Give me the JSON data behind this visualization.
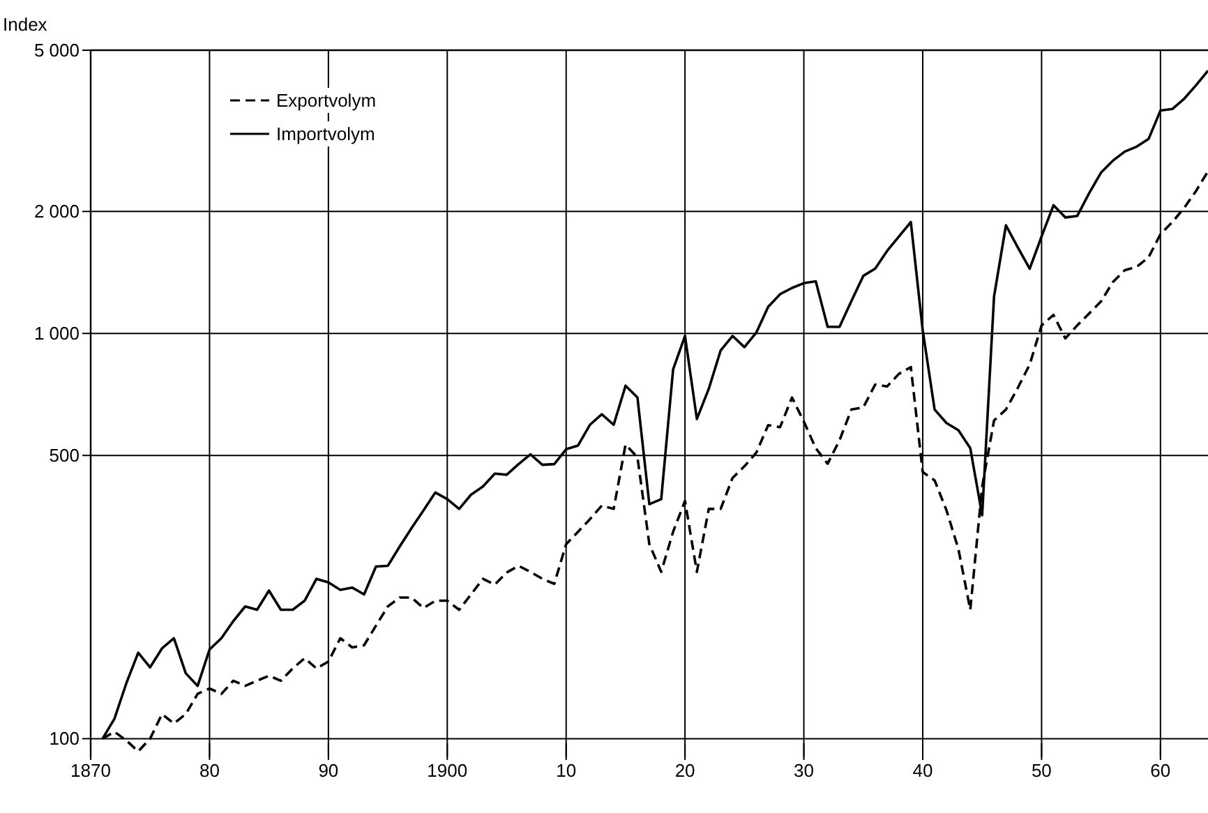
{
  "chart_data": {
    "type": "line",
    "ylabel": "Index",
    "log": true,
    "grid": true,
    "legend": "top left",
    "xlim": [
      1870,
      1964
    ],
    "xticks": [
      1870,
      {
        "value": 1880,
        "label": "80"
      },
      {
        "value": 1890,
        "label": "90"
      },
      1900,
      {
        "value": 1910,
        "label": "10"
      },
      {
        "value": 1920,
        "label": "20"
      },
      {
        "value": 1930,
        "label": "30"
      },
      {
        "value": 1940,
        "label": "40"
      },
      {
        "value": 1950,
        "label": "50"
      },
      {
        "value": 1960,
        "label": "60"
      }
    ],
    "ylim": [
      90,
      5000
    ],
    "yticks": [
      100,
      500,
      {
        "value": 1000,
        "label": "1 000"
      },
      {
        "value": 2000,
        "label": "2 000"
      },
      {
        "value": 5000,
        "label": "5 000"
      }
    ],
    "series": [
      {
        "name": "Exportvolym",
        "color": "#000000",
        "line_style": "dashed",
        "x": [
          1871,
          1872,
          1873,
          1874,
          1875,
          1876,
          1877,
          1878,
          1879,
          1880,
          1881,
          1882,
          1883,
          1884,
          1885,
          1886,
          1887,
          1888,
          1889,
          1890,
          1891,
          1892,
          1893,
          1894,
          1895,
          1896,
          1897,
          1898,
          1899,
          1900,
          1901,
          1902,
          1903,
          1904,
          1905,
          1906,
          1907,
          1908,
          1909,
          1910,
          1911,
          1912,
          1913,
          1914,
          1915,
          1916,
          1917,
          1918,
          1919,
          1920,
          1921,
          1922,
          1923,
          1924,
          1925,
          1926,
          1927,
          1928,
          1929,
          1930,
          1931,
          1932,
          1933,
          1934,
          1935,
          1936,
          1937,
          1938,
          1939,
          1940,
          1941,
          1942,
          1943,
          1944,
          1945,
          1946,
          1947,
          1948,
          1949,
          1950,
          1951,
          1952,
          1953,
          1954,
          1955,
          1956,
          1957,
          1958,
          1959,
          1960,
          1961,
          1962,
          1963,
          1964
        ],
        "values": [
          100,
          104,
          99,
          93,
          100,
          115,
          109,
          115,
          129,
          133,
          129,
          139,
          135,
          139,
          143,
          139,
          149,
          158,
          149,
          155,
          177,
          168,
          170,
          190,
          212,
          223,
          223,
          210,
          219,
          219,
          208,
          227,
          248,
          240,
          257,
          267,
          258,
          248,
          241,
          302,
          324,
          348,
          376,
          369,
          532,
          495,
          302,
          258,
          324,
          386,
          258,
          369,
          369,
          440,
          470,
          508,
          594,
          587,
          695,
          606,
          521,
          477,
          545,
          649,
          657,
          748,
          740,
          795,
          826,
          455,
          434,
          366,
          294,
          208,
          419,
          610,
          649,
          734,
          838,
          1047,
          1111,
          972,
          1047,
          1120,
          1200,
          1339,
          1433,
          1460,
          1541,
          1757,
          1883,
          2042,
          2248,
          2513
        ]
      },
      {
        "name": "Importvolym",
        "color": "#000000",
        "line_style": "solid",
        "x": [
          1871,
          1872,
          1873,
          1874,
          1875,
          1876,
          1877,
          1878,
          1879,
          1880,
          1881,
          1882,
          1883,
          1884,
          1885,
          1886,
          1887,
          1888,
          1889,
          1890,
          1891,
          1892,
          1893,
          1894,
          1895,
          1896,
          1897,
          1898,
          1899,
          1900,
          1901,
          1902,
          1903,
          1904,
          1905,
          1906,
          1907,
          1908,
          1909,
          1910,
          1911,
          1912,
          1913,
          1914,
          1915,
          1916,
          1917,
          1918,
          1919,
          1920,
          1921,
          1922,
          1923,
          1924,
          1925,
          1926,
          1927,
          1928,
          1929,
          1930,
          1931,
          1932,
          1933,
          1934,
          1935,
          1936,
          1937,
          1938,
          1939,
          1940,
          1941,
          1942,
          1943,
          1944,
          1945,
          1946,
          1947,
          1948,
          1949,
          1950,
          1951,
          1952,
          1953,
          1954,
          1955,
          1956,
          1957,
          1958,
          1959,
          1960,
          1961,
          1962,
          1963,
          1964
        ],
        "values": [
          100,
          112,
          137,
          163,
          150,
          167,
          177,
          145,
          135,
          166,
          177,
          195,
          212,
          208,
          232,
          208,
          208,
          219,
          248,
          243,
          233,
          236,
          227,
          266,
          267,
          298,
          331,
          366,
          405,
          390,
          369,
          400,
          419,
          451,
          448,
          476,
          503,
          474,
          476,
          518,
          529,
          595,
          632,
          595,
          743,
          695,
          379,
          390,
          815,
          986,
          615,
          730,
          908,
          986,
          925,
          1005,
          1164,
          1250,
          1295,
          1331,
          1345,
          1038,
          1038,
          1202,
          1387,
          1445,
          1598,
          1735,
          1883,
          1018,
          649,
          601,
          577,
          521,
          356,
          1233,
          1849,
          1630,
          1445,
          1735,
          2072,
          1933,
          1950,
          2218,
          2494,
          2669,
          2811,
          2890,
          3019,
          3548,
          3580,
          3796,
          4100,
          4450
        ]
      }
    ]
  }
}
